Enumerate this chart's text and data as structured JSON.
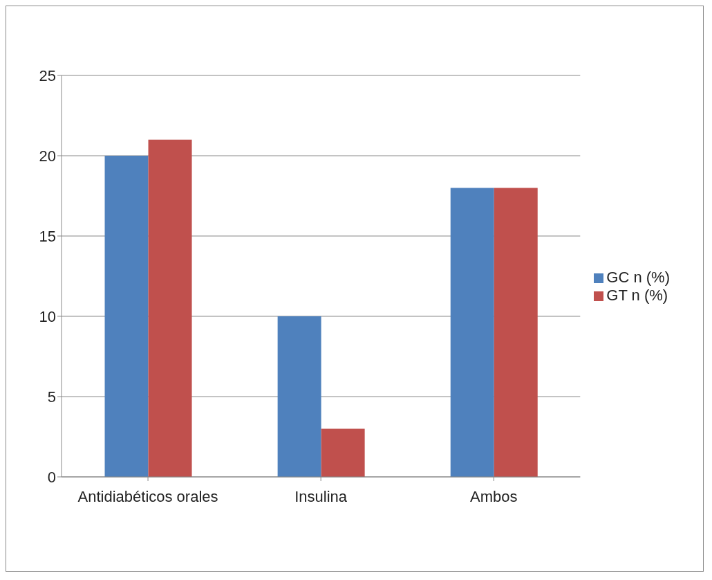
{
  "chart_data": {
    "type": "bar",
    "categories": [
      "Antidiabéticos orales",
      "Insulina",
      "Ambos"
    ],
    "series": [
      {
        "name": "GC n (%)",
        "color": "#4f81bd",
        "values": [
          20,
          10,
          18
        ]
      },
      {
        "name": "GT n (%)",
        "color": "#c0504d",
        "values": [
          21,
          3,
          18
        ]
      }
    ],
    "ylim": [
      0,
      25
    ],
    "yticks": [
      0,
      5,
      10,
      15,
      20,
      25
    ],
    "grid": "y",
    "legend": "right"
  }
}
